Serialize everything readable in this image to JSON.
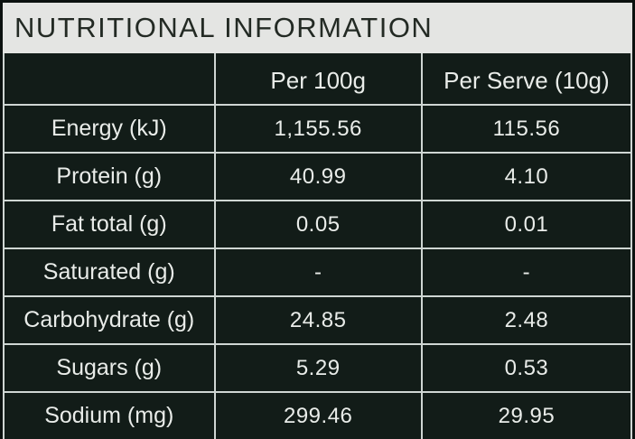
{
  "title": "NUTRITIONAL INFORMATION",
  "table": {
    "columns": [
      "",
      "Per 100g",
      "Per Serve (10g)"
    ],
    "rows": [
      {
        "label": "Energy (kJ)",
        "per_100g": "1,155.56",
        "per_serve": "115.56"
      },
      {
        "label": "Protein (g)",
        "per_100g": "40.99",
        "per_serve": "4.10"
      },
      {
        "label": "Fat total (g)",
        "per_100g": "0.05",
        "per_serve": "0.01"
      },
      {
        "label": "Saturated (g)",
        "per_100g": "-",
        "per_serve": "-"
      },
      {
        "label": "Carbohydrate (g)",
        "per_100g": "24.85",
        "per_serve": "2.48"
      },
      {
        "label": "Sugars (g)",
        "per_100g": "5.29",
        "per_serve": "0.53"
      },
      {
        "label": "Sodium (mg)",
        "per_100g": "299.46",
        "per_serve": "29.95"
      }
    ]
  },
  "colors": {
    "frame": "#0b110f",
    "title_background": "#e4e5e3",
    "title_text": "#232a24",
    "table_background": "#121c18",
    "grid_border": "#cfd6d3",
    "cell_text": "#e9ece9"
  }
}
